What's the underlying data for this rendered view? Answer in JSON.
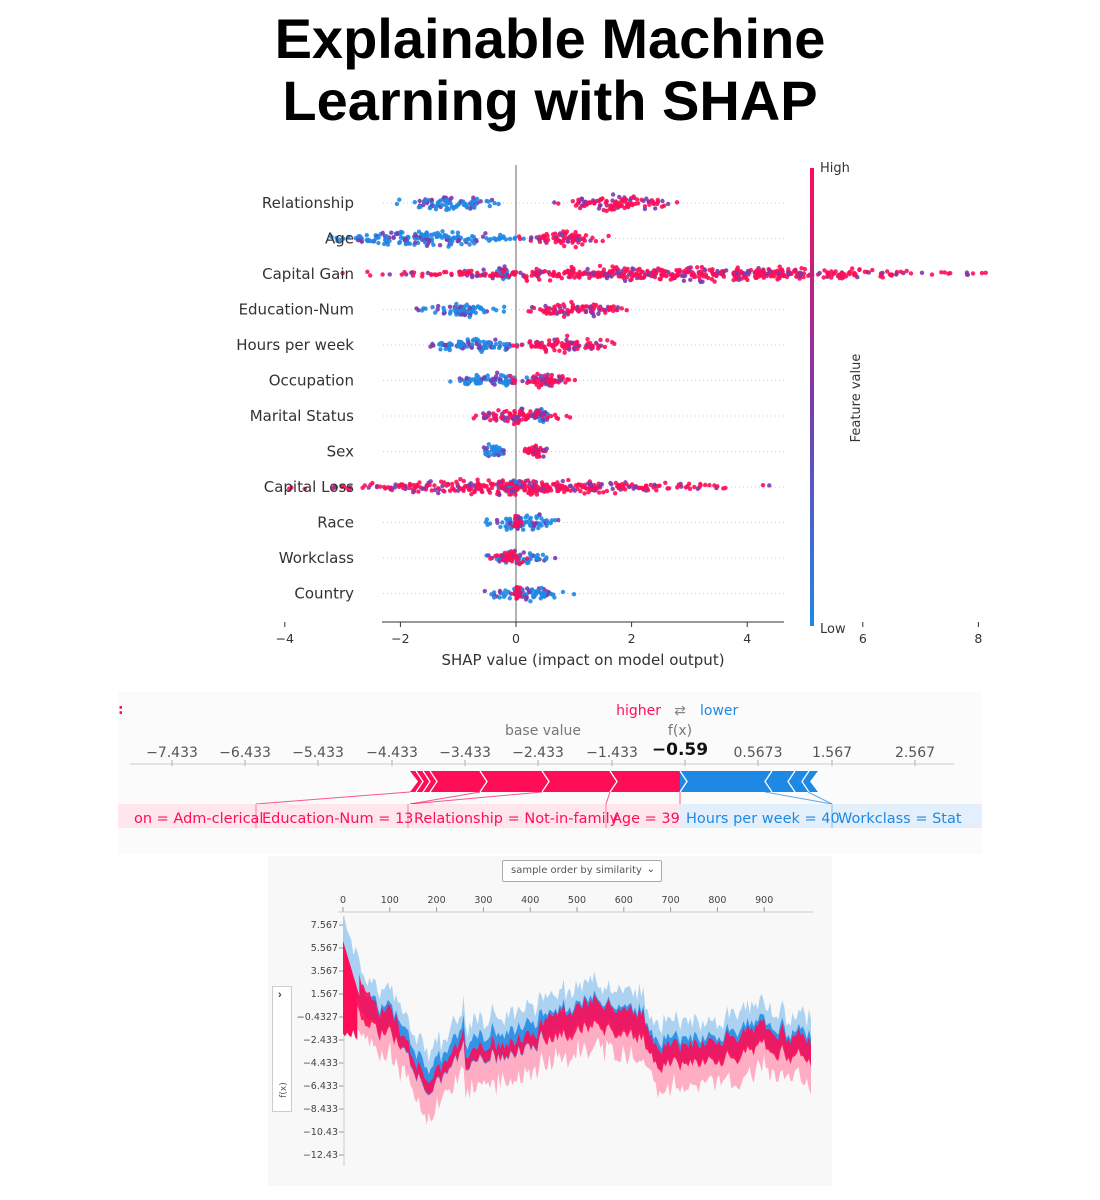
{
  "title": "Explainable Machine\nLearning with SHAP",
  "colors": {
    "high": "#ff0d57",
    "low": "#1e88e5",
    "mid": "#7c3aad",
    "light_low": "#a8d0f0",
    "light_high": "#ffa0b8"
  },
  "chart_data": [
    {
      "type": "scatter",
      "features": [
        "Relationship",
        "Age",
        "Capital Gain",
        "Education-Num",
        "Hours per week",
        "Occupation",
        "Marital Status",
        "Sex",
        "Capital Loss",
        "Race",
        "Workclass",
        "Country"
      ],
      "x_ticks": [
        "−4",
        "−2",
        "0",
        "2",
        "4",
        "6",
        "8"
      ],
      "xlim": [
        -4.5,
        8.7
      ],
      "xlabel": "SHAP value (impact on model output)",
      "colorbar_label": "Feature value",
      "colorbar_high": "High",
      "colorbar_low": "Low",
      "ranges": [
        {
          "blue": [
            -2.1,
            -0.2
          ],
          "red": [
            0.6,
            2.9
          ]
        },
        {
          "blue": [
            -3.6,
            0.4
          ],
          "red": [
            0.0,
            1.7
          ]
        },
        {
          "blue": [
            -0.35,
            -0.1
          ],
          "red": [
            -3.3,
            8.6
          ]
        },
        {
          "blue": [
            -1.8,
            -0.1
          ],
          "red": [
            0.1,
            2.2
          ]
        },
        {
          "blue": [
            -1.8,
            0.3
          ],
          "red": [
            -0.2,
            1.9
          ]
        },
        {
          "blue": [
            -1.3,
            0.4
          ],
          "red": [
            -0.3,
            1.2
          ]
        },
        {
          "blue": [
            0.3,
            0.6
          ],
          "red": [
            -1.0,
            1.1
          ]
        },
        {
          "blue": [
            -0.7,
            -0.1
          ],
          "red": [
            0.1,
            0.6
          ]
        },
        {
          "blue": [
            -0.2,
            0.1
          ],
          "red": [
            -4.0,
            4.4
          ]
        },
        {
          "blue": [
            -0.7,
            1.0
          ],
          "red": [
            -0.05,
            0.1
          ]
        },
        {
          "blue": [
            -0.6,
            0.7
          ],
          "red": [
            -0.5,
            0.3
          ]
        },
        {
          "blue": [
            -0.7,
            1.1
          ],
          "red": [
            -0.05,
            0.1
          ]
        }
      ]
    },
    {
      "type": "force",
      "axis_ticks": [
        "−7.433",
        "−6.433",
        "−5.433",
        "−4.433",
        "−3.433",
        "−2.433",
        "−1.433",
        "−0.4327",
        "0.5673",
        "1.567",
        "2.567"
      ],
      "legend_higher": "higher",
      "legend_arrows": "⇄",
      "legend_lower": "lower",
      "base_value_label": "base value",
      "fx_label": "f(x)",
      "fx_value": "−0.59",
      "base_value": -2.433,
      "output_value": -0.59,
      "left_edge_mark": ":",
      "features_red": [
        "on = Adm-clerical",
        "Education-Num = 13",
        "Relationship = Not-in-family",
        "Age = 39"
      ],
      "features_blue": [
        "Hours per week = 40",
        "Workclass = Stat"
      ]
    },
    {
      "type": "area",
      "dropdown": "sample order by similarity",
      "x_ticks": [
        "0",
        "100",
        "200",
        "300",
        "400",
        "500",
        "600",
        "700",
        "800",
        "900"
      ],
      "y_ticks": [
        "7.567",
        "5.567",
        "3.567",
        "1.567",
        "−0.4327",
        "−2.433",
        "−4.433",
        "−6.433",
        "−8.433",
        "−10.43",
        "−12.43"
      ],
      "ylabel": "f(x)",
      "expander": "›"
    }
  ]
}
